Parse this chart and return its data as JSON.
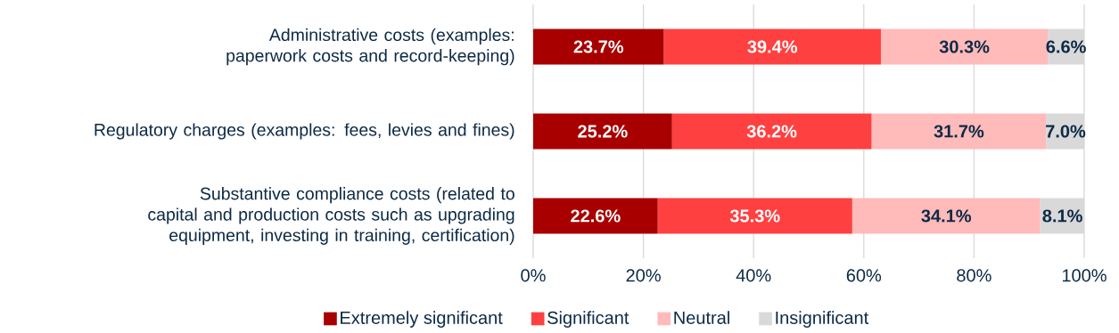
{
  "chart_data": {
    "type": "bar",
    "orientation": "horizontal",
    "stacked": true,
    "categories": [
      "Administrative costs (examples: paperwork costs and record-keeping)",
      "Regulatory charges (examples: fees, levies and fines)",
      "Substantive compliance costs (related to capital and production costs such as upgrading equipment, investing in training, certification)"
    ],
    "series": [
      {
        "name": "Extremely significant",
        "color": "#a80000",
        "values": [
          23.7,
          25.2,
          22.6
        ],
        "value_labels": [
          "23.7%",
          "25.2%",
          "22.6%"
        ]
      },
      {
        "name": "Significant",
        "color": "#ff4040",
        "values": [
          39.4,
          36.2,
          35.3
        ],
        "value_labels": [
          "39.4%",
          "36.2%",
          "35.3%"
        ]
      },
      {
        "name": "Neutral",
        "color": "#ffbaba",
        "values": [
          30.3,
          31.7,
          34.1
        ],
        "value_labels": [
          "30.3%",
          "31.7%",
          "34.1%"
        ]
      },
      {
        "name": "Insignificant",
        "color": "#d9d9d9",
        "values": [
          6.6,
          7.0,
          8.1
        ],
        "value_labels": [
          "6.6%",
          "7.0%",
          "8.1%"
        ]
      }
    ],
    "xlim": [
      0,
      100
    ],
    "xticks": [
      {
        "value": 0,
        "label": "0%"
      },
      {
        "value": 20,
        "label": "20%"
      },
      {
        "value": 40,
        "label": "40%"
      },
      {
        "value": 60,
        "label": "60%"
      },
      {
        "value": 80,
        "label": "80%"
      },
      {
        "value": 100,
        "label": "100%"
      }
    ],
    "grid": "x",
    "legend": "bottom"
  }
}
